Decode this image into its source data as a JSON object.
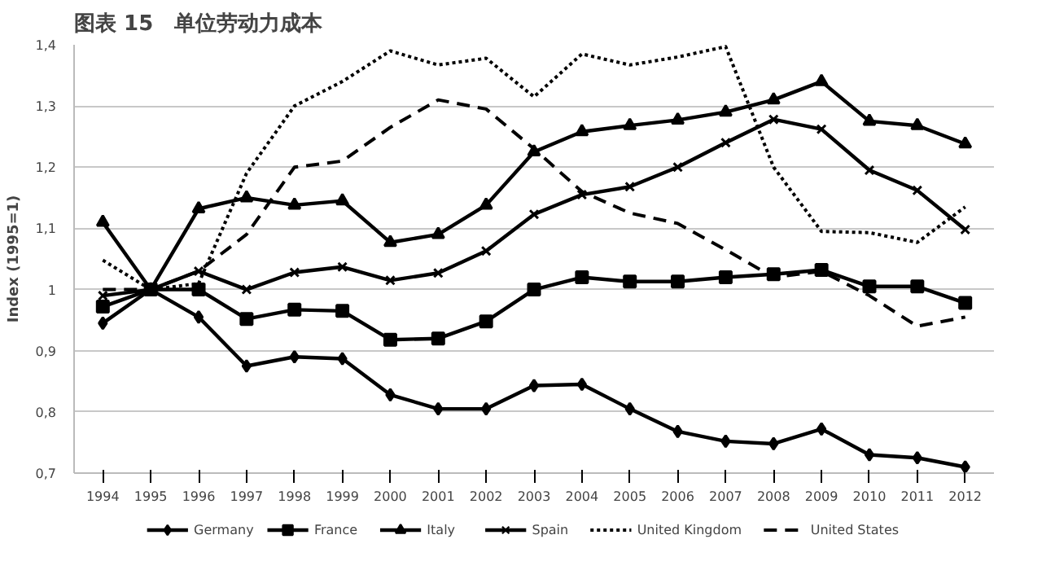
{
  "chart_data": {
    "type": "line",
    "title": "图表 15　单位劳动力成本",
    "ylabel": "Index (1995=1)",
    "categories": [
      "1994",
      "1995",
      "1996",
      "1997",
      "1998",
      "1999",
      "2000",
      "2001",
      "2002",
      "2003",
      "2004",
      "2005",
      "2006",
      "2007",
      "2008",
      "2009",
      "2010",
      "2011",
      "2012"
    ],
    "ylim": [
      0.7,
      1.4
    ],
    "yticks": [
      {
        "value": 0.7,
        "label": "0,7"
      },
      {
        "value": 0.8,
        "label": "0,8"
      },
      {
        "value": 0.9,
        "label": "0,9"
      },
      1,
      {
        "value": 1.1,
        "label": "1,1"
      },
      {
        "value": 1.2,
        "label": "1,2"
      },
      {
        "value": 1.3,
        "label": "1,3"
      },
      {
        "value": 1.4,
        "label": "1,4"
      }
    ],
    "grid": "y",
    "legend": "bottom",
    "series": [
      {
        "name": "Germany",
        "color": "#000000",
        "marker": "diamond",
        "line_style": "solid",
        "values": [
          0.945,
          1,
          0.955,
          0.875,
          0.89,
          0.887,
          0.828,
          0.805,
          0.805,
          0.843,
          0.845,
          0.805,
          0.768,
          0.752,
          0.748,
          0.772,
          0.73,
          0.725,
          0.71
        ]
      },
      {
        "name": "France",
        "color": "#000000",
        "marker": "square",
        "line_style": "solid",
        "values": [
          0.972,
          1,
          1.0,
          0.952,
          0.967,
          0.965,
          0.918,
          0.92,
          0.948,
          1.0,
          1.02,
          1.013,
          1.013,
          1.02,
          1.025,
          1.032,
          1.005,
          1.005,
          0.978
        ]
      },
      {
        "name": "Italy",
        "color": "#000000",
        "marker": "triangle",
        "line_style": "solid",
        "values": [
          1.11,
          1,
          1.132,
          1.15,
          1.138,
          1.145,
          1.077,
          1.09,
          1.138,
          1.225,
          1.258,
          1.268,
          1.277,
          1.29,
          1.31,
          1.34,
          1.275,
          1.268,
          1.238
        ]
      },
      {
        "name": "Spain",
        "color": "#000000",
        "marker": "cross",
        "line_style": "solid",
        "values": [
          0.99,
          1,
          1.03,
          1.0,
          1.028,
          1.037,
          1.015,
          1.027,
          1.063,
          1.123,
          1.155,
          1.168,
          1.2,
          1.24,
          1.278,
          1.262,
          1.195,
          1.162,
          1.098
        ]
      },
      {
        "name": "United Kingdom",
        "color": "#000000",
        "marker": "none",
        "line_style": "dotted",
        "values": [
          1.048,
          1,
          1.01,
          1.19,
          1.3,
          1.34,
          1.39,
          1.367,
          1.378,
          1.315,
          1.385,
          1.367,
          1.38,
          1.397,
          1.2,
          1.095,
          1.093,
          1.077,
          1.135
        ]
      },
      {
        "name": "United States",
        "color": "#000000",
        "marker": "none",
        "line_style": "dashed",
        "values": [
          1.0,
          1,
          1.03,
          1.09,
          1.2,
          1.21,
          1.265,
          1.31,
          1.295,
          1.23,
          1.16,
          1.125,
          1.108,
          1.065,
          1.02,
          1.03,
          0.99,
          0.94,
          0.955
        ]
      }
    ]
  }
}
